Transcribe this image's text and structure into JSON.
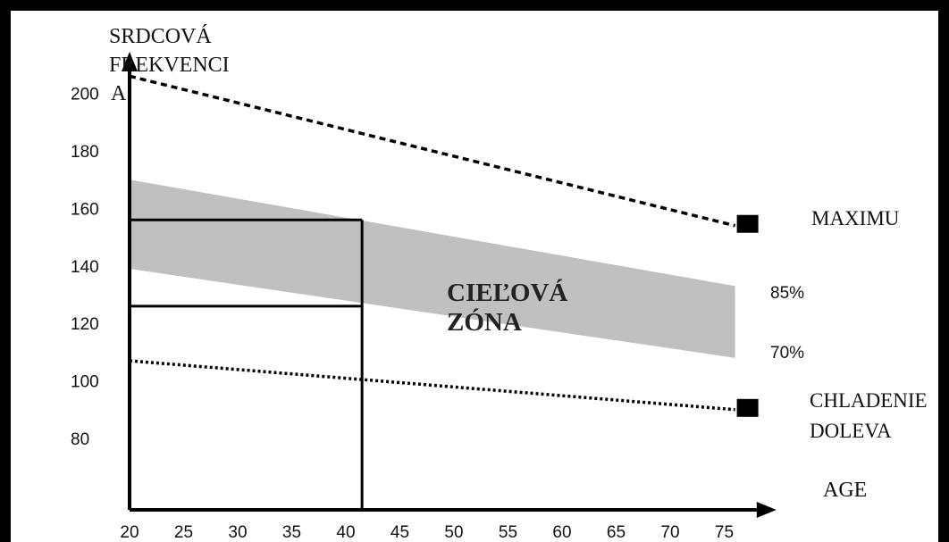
{
  "chart_data": {
    "type": "line",
    "ylabel_lines": [
      "SRDCOVÁ",
      "FREKVENCI",
      "A"
    ],
    "xlabel": "AGE",
    "x_ticks": [
      20,
      25,
      30,
      35,
      40,
      45,
      50,
      55,
      60,
      65,
      70,
      75
    ],
    "y_ticks": [
      80,
      100,
      120,
      140,
      160,
      180,
      200
    ],
    "series": [
      {
        "name": "MAXIMU",
        "style": "dashed",
        "color": "#000000",
        "x": [
          20,
          76
        ],
        "y": [
          206,
          154
        ]
      },
      {
        "name_lines": [
          "CHLADENIE",
          "DOLEVA"
        ],
        "style": "dotted",
        "color": "#000000",
        "x": [
          20,
          76
        ],
        "y": [
          107,
          90
        ]
      }
    ],
    "band": {
      "label_lines": [
        "CIEĽOVÁ",
        "ZÓNA"
      ],
      "color": "#c0c0c0",
      "x": [
        20,
        76
      ],
      "upper": [
        170,
        133
      ],
      "lower": [
        139,
        108
      ],
      "upper_label": "85%",
      "lower_label": "70%"
    },
    "reference": {
      "age": 41.5,
      "upper_hr": 156,
      "lower_hr": 126
    },
    "axis_top_y": 212,
    "x_axis_end": 78
  }
}
